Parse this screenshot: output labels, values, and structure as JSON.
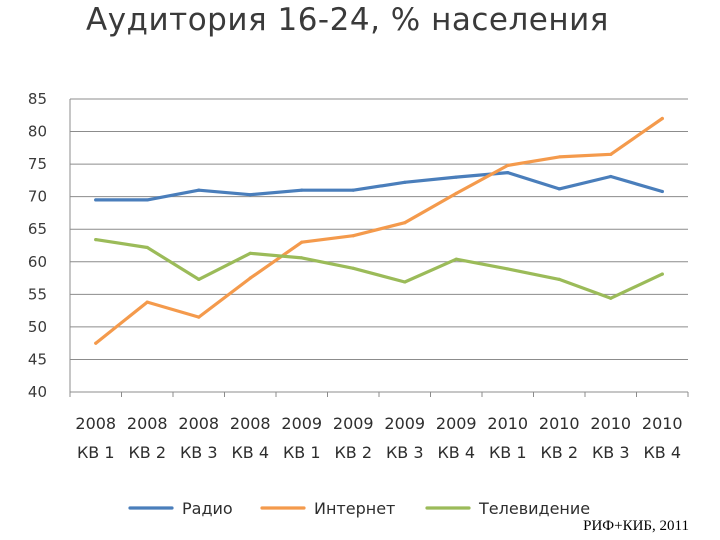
{
  "chart_data": {
    "type": "line",
    "title": "Аудитория 16-24, % населения",
    "categories": [
      [
        "2008",
        "КВ 1"
      ],
      [
        "2008",
        "КВ 2"
      ],
      [
        "2008",
        "КВ 3"
      ],
      [
        "2008",
        "КВ 4"
      ],
      [
        "2009",
        "КВ 1"
      ],
      [
        "2009",
        "КВ 2"
      ],
      [
        "2009",
        "КВ 3"
      ],
      [
        "2009",
        "КВ 4"
      ],
      [
        "2010",
        "КВ 1"
      ],
      [
        "2010",
        "КВ 2"
      ],
      [
        "2010",
        "КВ 3"
      ],
      [
        "2010",
        "КВ 4"
      ]
    ],
    "ylim": [
      40,
      85
    ],
    "yticks": [
      40,
      45,
      50,
      55,
      60,
      65,
      70,
      75,
      80,
      85
    ],
    "grid": true,
    "legend_position": "bottom",
    "series": [
      {
        "name": "Радио",
        "color": "#4a7ebb",
        "values": [
          69.5,
          69.5,
          71,
          70.3,
          71,
          71,
          72.2,
          73,
          73.7,
          71.2,
          73.1,
          70.8
        ]
      },
      {
        "name": "Интернет",
        "color": "#f49a4c",
        "values": [
          47.5,
          53.8,
          51.5,
          57.5,
          63,
          64,
          66,
          70.5,
          74.8,
          76.1,
          76.5,
          82
        ]
      },
      {
        "name": "Телевидение",
        "color": "#9bbb59",
        "values": [
          63.4,
          62.2,
          57.3,
          61.3,
          60.6,
          59,
          56.9,
          60.4,
          58.9,
          57.3,
          54.4,
          58.1
        ]
      }
    ]
  },
  "source": "РИФ+КИБ, 2011"
}
